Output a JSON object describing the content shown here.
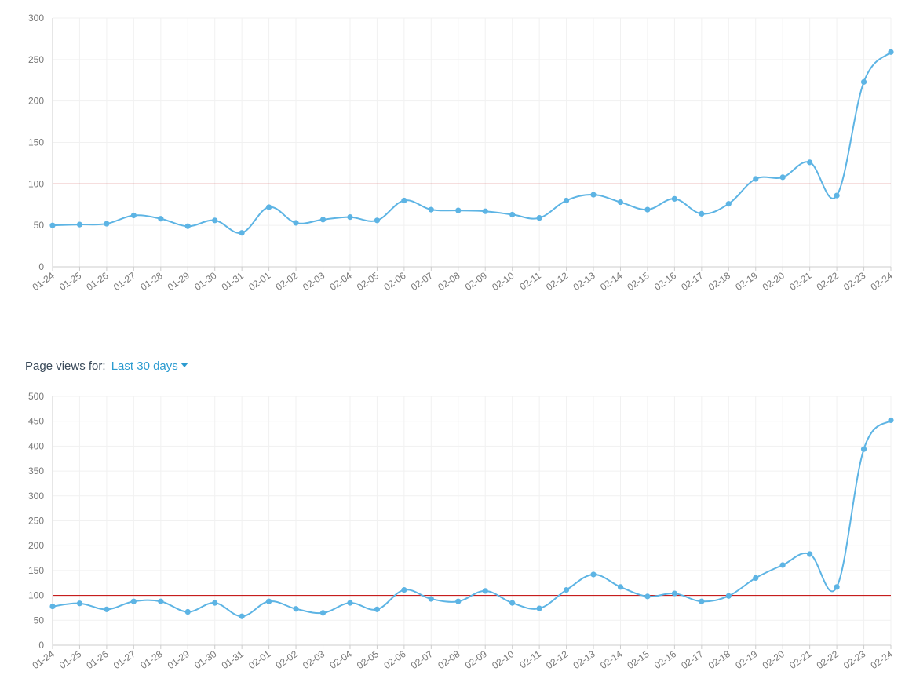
{
  "filter": {
    "label": "Page views for:",
    "selected": "Last 30 days"
  },
  "colors": {
    "line": "#5db4e4",
    "threshold": "#c00000",
    "grid": "#f1f1f1",
    "axis": "#cccccc"
  },
  "chart_data": [
    {
      "type": "line",
      "title": "",
      "xlabel": "",
      "ylabel": "",
      "grid": true,
      "ylim": [
        0,
        300
      ],
      "yticks": [
        0,
        50,
        100,
        150,
        200,
        250,
        300
      ],
      "threshold": 100,
      "categories": [
        "01-24",
        "01-25",
        "01-26",
        "01-27",
        "01-28",
        "01-29",
        "01-30",
        "01-31",
        "02-01",
        "02-02",
        "02-03",
        "02-04",
        "02-05",
        "02-06",
        "02-07",
        "02-08",
        "02-09",
        "02-10",
        "02-11",
        "02-12",
        "02-13",
        "02-14",
        "02-15",
        "02-16",
        "02-17",
        "02-18",
        "02-19",
        "02-20",
        "02-21",
        "02-22",
        "02-23",
        "02-24"
      ],
      "series": [
        {
          "values": [
            50,
            51,
            52,
            62,
            58,
            49,
            56,
            41,
            72,
            53,
            57,
            60,
            56,
            80,
            69,
            68,
            67,
            63,
            59,
            80,
            87,
            78,
            69,
            82,
            64,
            76,
            106,
            108,
            126,
            86,
            223,
            259
          ]
        }
      ]
    },
    {
      "type": "line",
      "title": "",
      "xlabel": "",
      "ylabel": "",
      "grid": true,
      "ylim": [
        0,
        500
      ],
      "yticks": [
        0,
        50,
        100,
        150,
        200,
        250,
        300,
        350,
        400,
        450,
        500
      ],
      "threshold": 100,
      "categories": [
        "01-24",
        "01-25",
        "01-26",
        "01-27",
        "01-28",
        "01-29",
        "01-30",
        "01-31",
        "02-01",
        "02-02",
        "02-03",
        "02-04",
        "02-05",
        "02-06",
        "02-07",
        "02-08",
        "02-09",
        "02-10",
        "02-11",
        "02-12",
        "02-13",
        "02-14",
        "02-15",
        "02-16",
        "02-17",
        "02-18",
        "02-19",
        "02-20",
        "02-21",
        "02-22",
        "02-23",
        "02-24"
      ],
      "series": [
        {
          "values": [
            78,
            84,
            72,
            88,
            88,
            67,
            85,
            58,
            88,
            73,
            65,
            85,
            72,
            111,
            93,
            88,
            109,
            85,
            74,
            111,
            142,
            117,
            98,
            104,
            88,
            99,
            135,
            161,
            183,
            117,
            394,
            452
          ]
        }
      ]
    }
  ]
}
